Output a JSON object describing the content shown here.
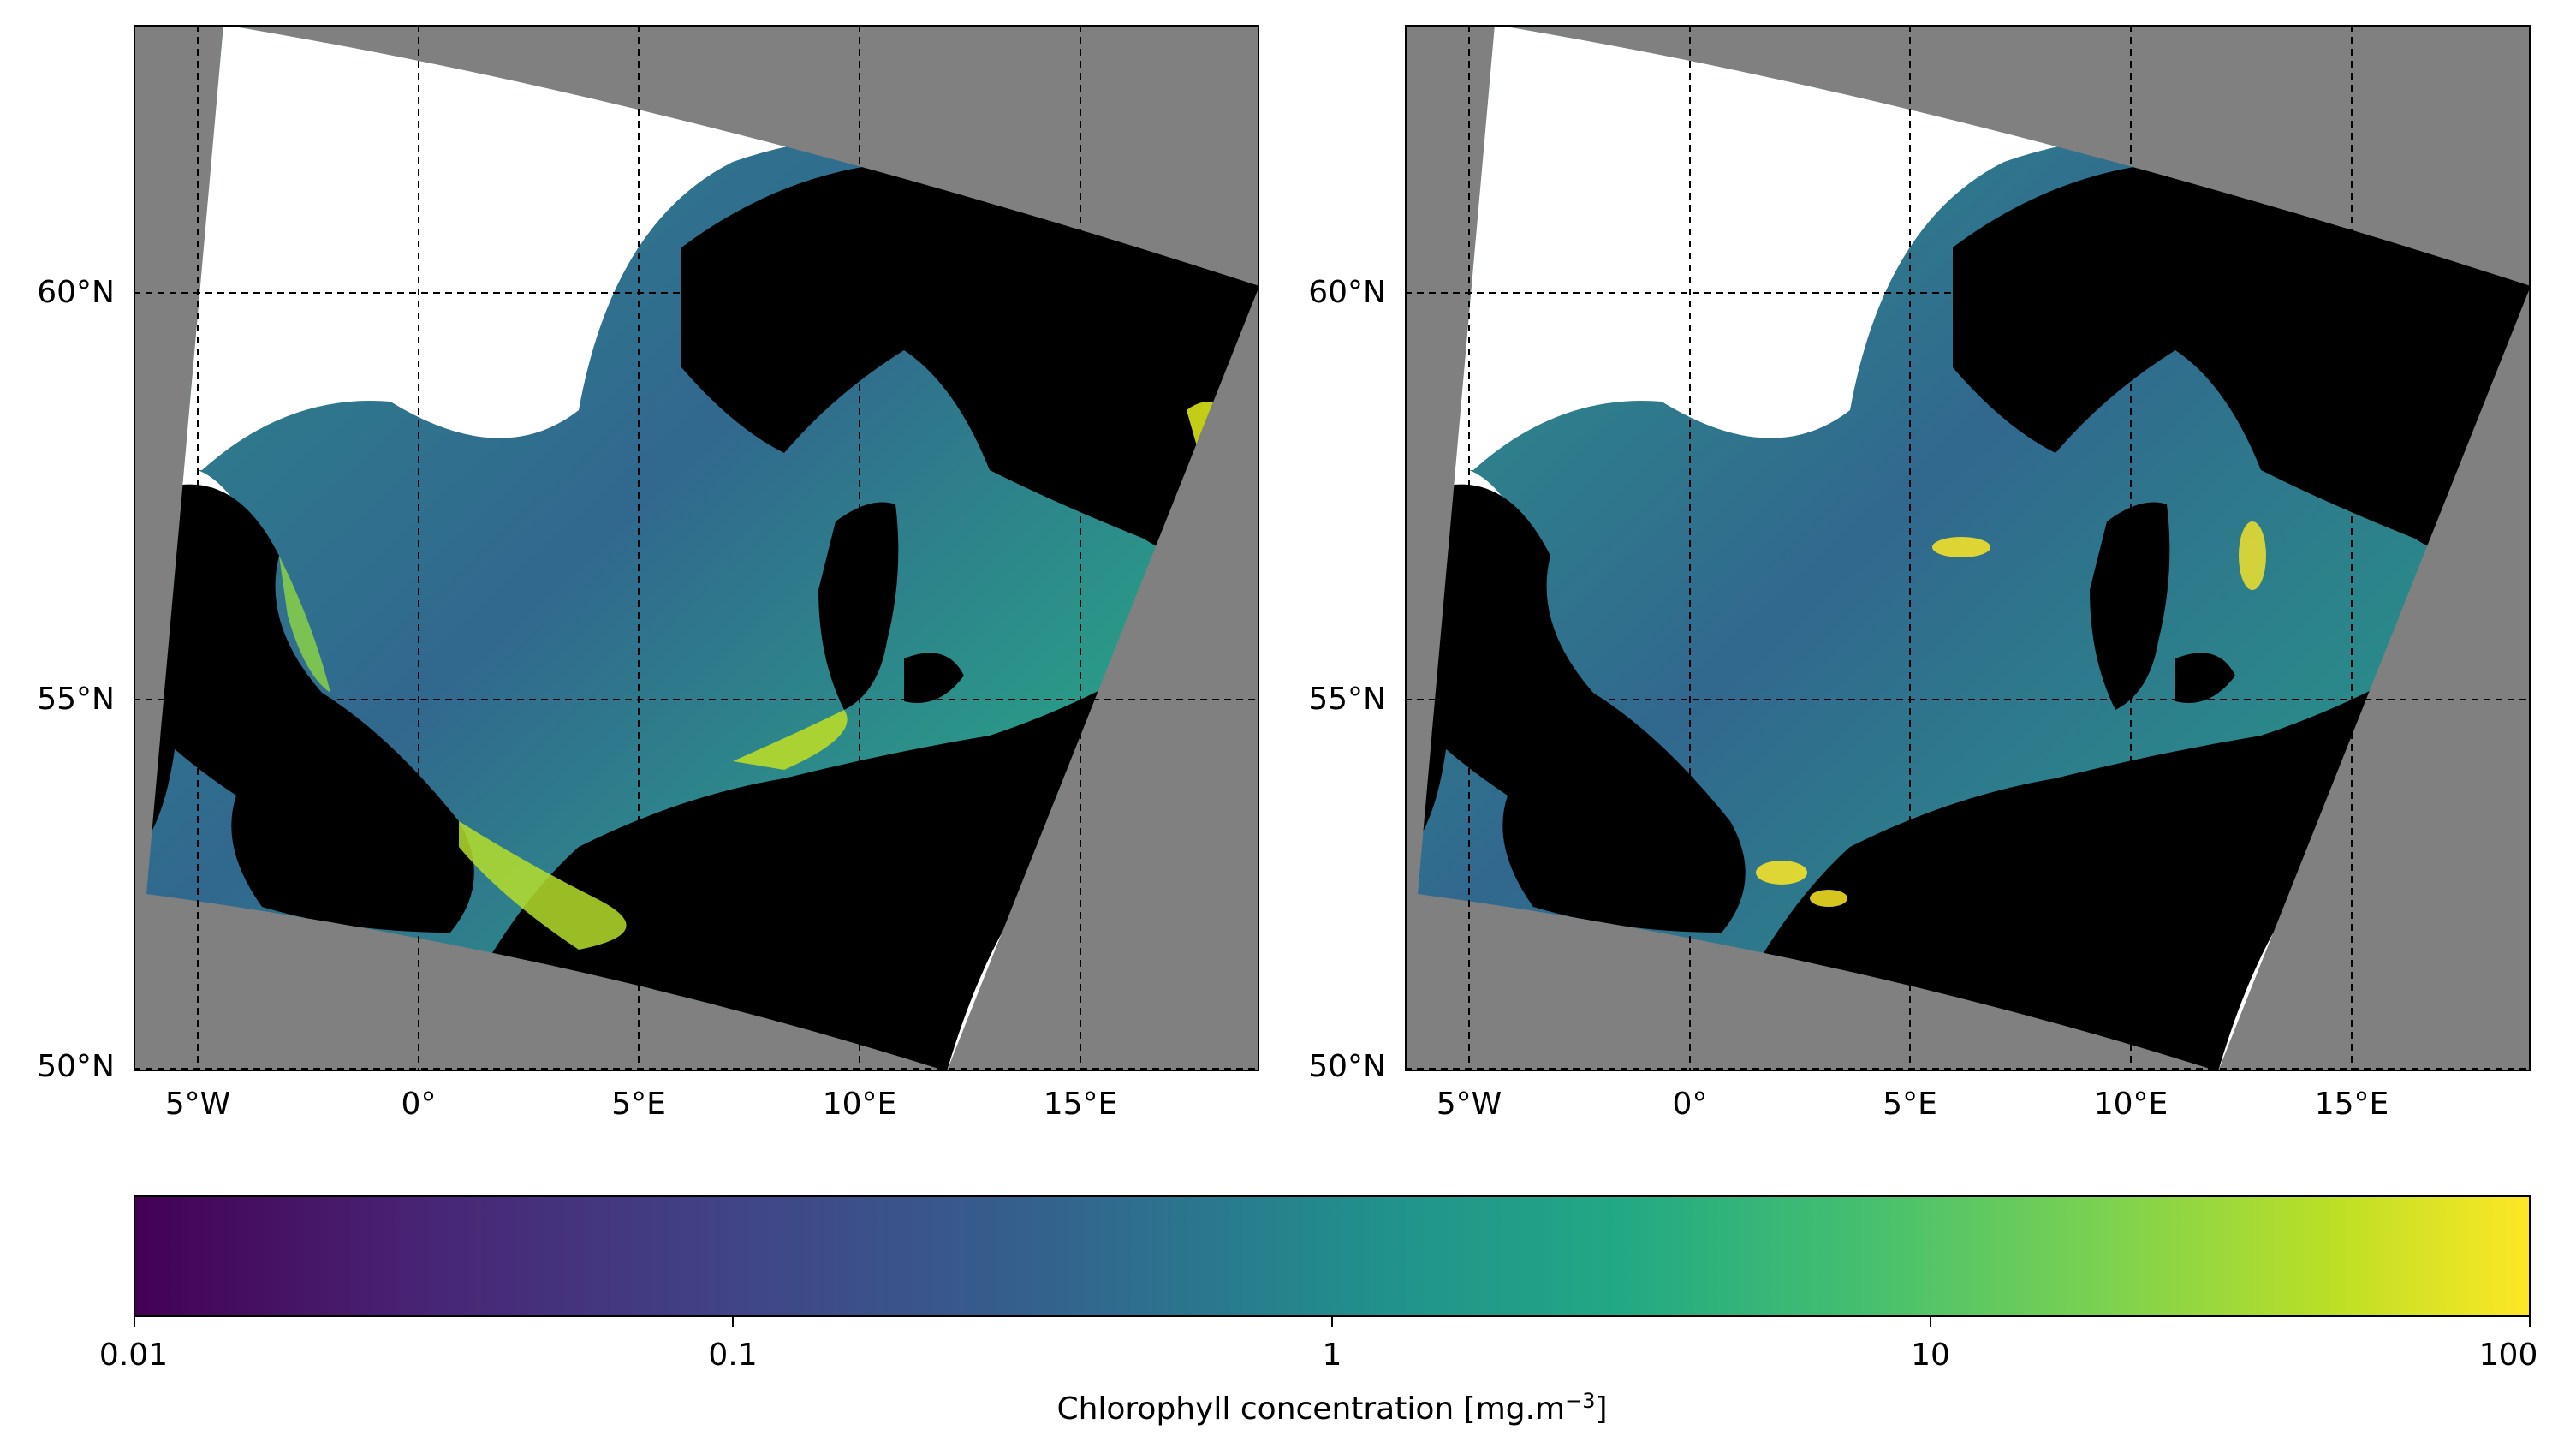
{
  "panels": [
    {
      "id": "left",
      "lat_ticks": [
        "60°N",
        "55°N",
        "50°N"
      ],
      "lon_ticks": [
        "5°W",
        "0°",
        "5°E",
        "10°E",
        "15°E"
      ]
    },
    {
      "id": "right",
      "lat_ticks": [
        "60°N",
        "55°N",
        "50°N"
      ],
      "lon_ticks": [
        "5°W",
        "0°",
        "5°E",
        "10°E",
        "15°E"
      ]
    }
  ],
  "colorbar": {
    "colormap": "viridis",
    "scale": "log",
    "range": [
      0.01,
      100
    ],
    "tick_labels": [
      "0.01",
      "0.1",
      "1",
      "10",
      "100"
    ],
    "label_text": "Chlorophyll concentration [mg.m",
    "label_exponent": "−3",
    "label_close": "]"
  },
  "colors": {
    "background_nodata": "#808080",
    "land": "#000000",
    "cloud": "#ffffff",
    "viridis_low": "#440154",
    "viridis_mid": "#21918c",
    "viridis_high": "#fde725"
  }
}
